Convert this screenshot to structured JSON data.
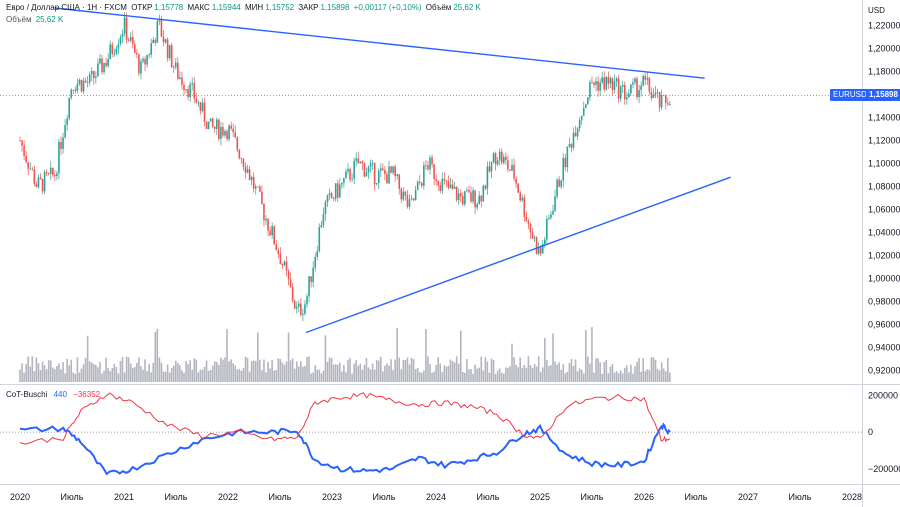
{
  "header": {
    "symbol": "Евро / Доллар США · 1Н · FXCM",
    "open_label": "ОТКР",
    "open": "1,15778",
    "high_label": "МАКС",
    "high": "1,15944",
    "low_label": "МИН",
    "low": "1,15752",
    "close_label": "ЗАКР",
    "close": "1,15898",
    "change": "+0,00117 (+0,10%)",
    "volume_label": "Объём",
    "volume": "25,62 K",
    "volume_row_label": "Объём",
    "volume_row_value": "25,62 K"
  },
  "price_axis": {
    "currency": "USD",
    "ticks": [
      "1,22000",
      "1,20000",
      "1,18000",
      "1,16000",
      "1,14000",
      "1,12000",
      "1,10000",
      "1,08000",
      "1,06000",
      "1,04000",
      "1,02000",
      "1,00000",
      "0,98000",
      "0,96000",
      "0,94000",
      "0,92000"
    ]
  },
  "price_tag": {
    "symbol": "EURUSD",
    "value": "1,15898"
  },
  "indicator": {
    "name": "CoT-Buschi",
    "value_blue": "440",
    "value_red": "−36352",
    "ticks": [
      "200000",
      "0",
      "−200000"
    ]
  },
  "time_axis": [
    "2020",
    "Июль",
    "2021",
    "Июль",
    "2022",
    "Июль",
    "2023",
    "Июль",
    "2024",
    "Июль",
    "2025",
    "Июль",
    "2026",
    "Июль",
    "2027",
    "Июль",
    "2028"
  ],
  "colors": {
    "up": "#26a69a",
    "down": "#ef5350",
    "trend": "#2962ff",
    "volume": "#b2b5be",
    "cot_blue": "#2962ff",
    "cot_red": "#f23645"
  },
  "chart_data": [
    {
      "type": "candlestick",
      "title": "Евро / Доллар США · 1Н · FXCM",
      "ylabel": "USD",
      "ylim": [
        0.91,
        1.235
      ],
      "x": [
        "2020-01",
        "2020-03",
        "2020-05",
        "2020-07",
        "2020-09",
        "2020-11",
        "2021-01",
        "2021-03",
        "2021-05",
        "2021-07",
        "2021-09",
        "2021-11",
        "2022-01",
        "2022-03",
        "2022-05",
        "2022-07",
        "2022-09",
        "2022-10",
        "2022-12",
        "2023-02",
        "2023-04",
        "2023-06",
        "2023-08",
        "2023-10",
        "2023-12",
        "2024-02",
        "2024-04",
        "2024-06",
        "2024-08",
        "2024-10",
        "2024-12",
        "2025-01",
        "2025-03",
        "2025-05",
        "2025-07",
        "2025-09",
        "2025-11",
        "2026-01",
        "2026-03",
        "2026-04"
      ],
      "close": [
        1.12,
        1.08,
        1.09,
        1.17,
        1.17,
        1.19,
        1.22,
        1.18,
        1.22,
        1.18,
        1.16,
        1.13,
        1.13,
        1.1,
        1.06,
        1.02,
        0.97,
        0.98,
        1.06,
        1.08,
        1.1,
        1.09,
        1.09,
        1.06,
        1.1,
        1.08,
        1.07,
        1.07,
        1.11,
        1.09,
        1.04,
        1.02,
        1.08,
        1.13,
        1.17,
        1.17,
        1.16,
        1.17,
        1.15,
        1.159
      ],
      "trendlines": [
        {
          "name": "upper",
          "points": [
            [
              "2020-05",
              1.235
            ],
            [
              "2026-08",
              1.174
            ]
          ]
        },
        {
          "name": "lower",
          "points": [
            [
              "2022-10",
              0.953
            ],
            [
              "2026-11",
              1.088
            ]
          ]
        }
      ]
    },
    {
      "type": "line",
      "title": "CoT-Buschi",
      "ylim": [
        -260000,
        240000
      ],
      "x": [
        "2020-01",
        "2020-06",
        "2020-08",
        "2020-11",
        "2021-02",
        "2021-06",
        "2021-10",
        "2022-02",
        "2022-06",
        "2022-09",
        "2022-11",
        "2023-02",
        "2023-05",
        "2023-08",
        "2023-11",
        "2024-02",
        "2024-05",
        "2024-08",
        "2024-11",
        "2025-01",
        "2025-04",
        "2025-07",
        "2025-10",
        "2026-01",
        "2026-03",
        "2026-04"
      ],
      "series": [
        {
          "name": "CoT-Buschi",
          "values": [
            10000,
            20000,
            -50000,
            -230000,
            -200000,
            -120000,
            -40000,
            0,
            0,
            10000,
            -150000,
            -200000,
            -210000,
            -200000,
            -140000,
            -180000,
            -150000,
            -110000,
            -10000,
            20000,
            -120000,
            -170000,
            -180000,
            -160000,
            40000,
            440
          ]
        },
        {
          "name": "",
          "values": [
            -60000,
            -30000,
            110000,
            210000,
            160000,
            40000,
            -20000,
            0,
            -40000,
            -30000,
            160000,
            190000,
            200000,
            170000,
            150000,
            160000,
            140000,
            100000,
            -10000,
            -40000,
            140000,
            180000,
            190000,
            180000,
            -40000,
            -36352
          ]
        }
      ]
    }
  ]
}
